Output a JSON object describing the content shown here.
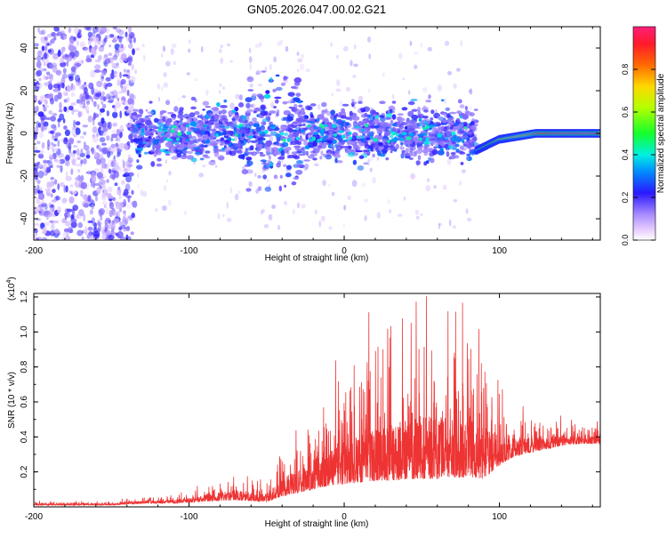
{
  "title": "GN05.2026.047.00.02.G21",
  "chart_data": [
    {
      "type": "heatmap",
      "title": "GN05.2026.047.00.02.G21",
      "xlabel": "Height of straight line (km)",
      "ylabel": "Frequency (Hz)",
      "xlim": [
        -200,
        165
      ],
      "ylim": [
        -50,
        50
      ],
      "xticks": [
        "-200",
        "-100",
        "0",
        "100"
      ],
      "yticks": [
        "40",
        "20",
        "0",
        "-20",
        "-40"
      ],
      "colorbar": {
        "label": "Normalized spectral amplitude",
        "range": [
          0,
          1
        ],
        "ticks": [
          "0.0",
          "0.2",
          "0.4",
          "0.6",
          "0.8"
        ]
      },
      "regions": [
        {
          "name": "noise",
          "x_range": [
            -200,
            -135
          ],
          "freq_range": [
            -50,
            50
          ],
          "amplitude": 0.1
        },
        {
          "name": "scatter",
          "x_range": [
            -135,
            85
          ],
          "freq_range": [
            -15,
            15
          ],
          "amplitude": 0.25
        },
        {
          "name": "bump",
          "x_range": [
            -60,
            -30
          ],
          "freq_range": [
            -25,
            35
          ],
          "amplitude": 0.2
        },
        {
          "name": "tracking",
          "x_range": [
            85,
            165
          ],
          "freq_range": [
            -10,
            3
          ],
          "amplitude": 0.9
        }
      ]
    },
    {
      "type": "line",
      "title": "",
      "xlabel": "Height of straight line (km)",
      "ylabel": "SNR (10 * v/v)",
      "multiplier": "(x10",
      "multiplier_exp": "4",
      "xlim": [
        -200,
        165
      ],
      "ylim": [
        0,
        1.22
      ],
      "xticks": [
        "-200",
        "-100",
        "0",
        "100"
      ],
      "yticks": [
        "1.2",
        "1.0",
        "0.8",
        "0.6",
        "0.4",
        "0.2"
      ],
      "color": "#ee3333",
      "envelope": {
        "x": [
          -200,
          -150,
          -130,
          -110,
          -90,
          -70,
          -50,
          -40,
          -30,
          -20,
          -10,
          0,
          10,
          20,
          30,
          40,
          50,
          60,
          70,
          80,
          90,
          100,
          110,
          120,
          130,
          140,
          150,
          165
        ],
        "base": [
          0.01,
          0.01,
          0.02,
          0.02,
          0.03,
          0.04,
          0.03,
          0.06,
          0.08,
          0.1,
          0.12,
          0.13,
          0.14,
          0.15,
          0.15,
          0.16,
          0.16,
          0.16,
          0.17,
          0.17,
          0.16,
          0.24,
          0.29,
          0.31,
          0.33,
          0.35,
          0.36,
          0.36
        ],
        "peak": [
          0.03,
          0.03,
          0.06,
          0.07,
          0.12,
          0.18,
          0.14,
          0.32,
          0.45,
          0.53,
          0.62,
          0.75,
          0.8,
          0.88,
          0.95,
          1.0,
          1.05,
          1.05,
          1.02,
          0.95,
          0.9,
          0.72,
          0.58,
          0.52,
          0.5,
          0.49,
          0.48,
          0.47
        ]
      },
      "max_value": 1.21
    }
  ]
}
